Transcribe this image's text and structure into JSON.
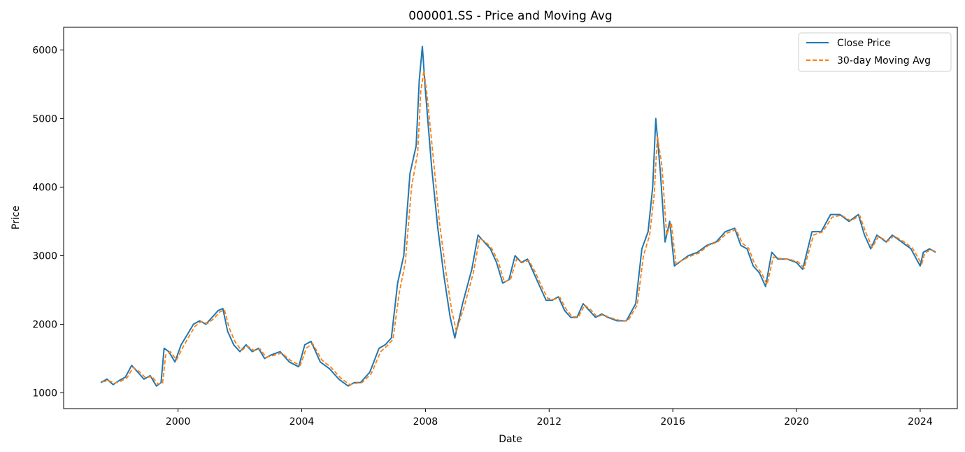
{
  "chart_data": {
    "type": "line",
    "title": "000001.SS - Price and Moving Avg",
    "xlabel": "Date",
    "ylabel": "Price",
    "xlim": [
      1996.3,
      2025.2
    ],
    "ylim": [
      770,
      6330
    ],
    "x_ticks": [
      2000,
      2004,
      2008,
      2012,
      2016,
      2020,
      2024
    ],
    "x_tick_labels": [
      "2000",
      "2004",
      "2008",
      "2012",
      "2016",
      "2020",
      "2024"
    ],
    "y_ticks": [
      1000,
      2000,
      3000,
      4000,
      5000,
      6000
    ],
    "y_tick_labels": [
      "1000",
      "2000",
      "3000",
      "4000",
      "5000",
      "6000"
    ],
    "grid": false,
    "legend_position": "upper-right",
    "series": [
      {
        "name": "Close Price",
        "color": "#1f77b4",
        "style": "solid",
        "x": [
          1997.5,
          1997.7,
          1997.9,
          1998.1,
          1998.3,
          1998.5,
          1998.7,
          1998.9,
          1999.1,
          1999.3,
          1999.45,
          1999.55,
          1999.7,
          1999.9,
          2000.1,
          2000.3,
          2000.5,
          2000.7,
          2000.9,
          2001.1,
          2001.3,
          2001.45,
          2001.6,
          2001.8,
          2002.0,
          2002.2,
          2002.4,
          2002.6,
          2002.8,
          2003.0,
          2003.3,
          2003.6,
          2003.9,
          2004.1,
          2004.3,
          2004.6,
          2004.9,
          2005.2,
          2005.5,
          2005.7,
          2005.9,
          2006.2,
          2006.5,
          2006.7,
          2006.9,
          2007.1,
          2007.3,
          2007.5,
          2007.7,
          2007.8,
          2007.9,
          2008.0,
          2008.2,
          2008.4,
          2008.6,
          2008.8,
          2008.95,
          2009.2,
          2009.5,
          2009.7,
          2009.9,
          2010.1,
          2010.3,
          2010.5,
          2010.7,
          2010.9,
          2011.1,
          2011.3,
          2011.5,
          2011.7,
          2011.9,
          2012.1,
          2012.3,
          2012.5,
          2012.7,
          2012.9,
          2013.1,
          2013.3,
          2013.5,
          2013.7,
          2013.9,
          2014.2,
          2014.5,
          2014.8,
          2015.0,
          2015.2,
          2015.35,
          2015.45,
          2015.6,
          2015.75,
          2015.9,
          2016.05,
          2016.2,
          2016.5,
          2016.8,
          2017.1,
          2017.4,
          2017.7,
          2018.0,
          2018.2,
          2018.4,
          2018.6,
          2018.8,
          2019.0,
          2019.2,
          2019.4,
          2019.7,
          2020.0,
          2020.2,
          2020.5,
          2020.8,
          2021.1,
          2021.4,
          2021.7,
          2022.0,
          2022.2,
          2022.4,
          2022.6,
          2022.9,
          2023.1,
          2023.4,
          2023.7,
          2024.0,
          2024.1,
          2024.3,
          2024.5
        ],
        "y": [
          1150,
          1200,
          1120,
          1180,
          1230,
          1400,
          1300,
          1200,
          1250,
          1100,
          1150,
          1650,
          1600,
          1450,
          1700,
          1850,
          2000,
          2050,
          2000,
          2100,
          2200,
          2230,
          1900,
          1700,
          1600,
          1700,
          1600,
          1650,
          1500,
          1550,
          1600,
          1450,
          1380,
          1700,
          1750,
          1450,
          1350,
          1200,
          1100,
          1150,
          1150,
          1300,
          1650,
          1700,
          1800,
          2600,
          3000,
          4200,
          4600,
          5550,
          6050,
          5400,
          4300,
          3400,
          2700,
          2100,
          1800,
          2300,
          2800,
          3300,
          3200,
          3100,
          2900,
          2600,
          2650,
          3000,
          2900,
          2950,
          2750,
          2550,
          2350,
          2350,
          2400,
          2200,
          2100,
          2100,
          2300,
          2200,
          2100,
          2150,
          2100,
          2050,
          2050,
          2300,
          3100,
          3350,
          4000,
          5000,
          4200,
          3200,
          3500,
          2850,
          2900,
          3000,
          3050,
          3150,
          3200,
          3350,
          3400,
          3150,
          3100,
          2850,
          2750,
          2550,
          3050,
          2950,
          2950,
          2900,
          2800,
          3350,
          3350,
          3600,
          3600,
          3500,
          3600,
          3300,
          3100,
          3300,
          3200,
          3300,
          3200,
          3100,
          2850,
          3050,
          3100,
          3050
        ]
      },
      {
        "name": "30-day Moving Avg",
        "color": "#ff7f0e",
        "style": "dashed",
        "x": [
          1997.55,
          1997.75,
          1997.95,
          1998.15,
          1998.35,
          1998.55,
          1998.75,
          1998.95,
          1999.15,
          1999.35,
          1999.5,
          1999.6,
          1999.75,
          1999.95,
          2000.15,
          2000.35,
          2000.55,
          2000.75,
          2000.95,
          2001.15,
          2001.35,
          2001.5,
          2001.65,
          2001.85,
          2002.05,
          2002.25,
          2002.45,
          2002.65,
          2002.85,
          2003.05,
          2003.35,
          2003.65,
          2003.95,
          2004.15,
          2004.35,
          2004.65,
          2004.95,
          2005.25,
          2005.55,
          2005.75,
          2005.95,
          2006.25,
          2006.55,
          2006.75,
          2006.95,
          2007.15,
          2007.35,
          2007.55,
          2007.75,
          2007.85,
          2007.95,
          2008.05,
          2008.25,
          2008.45,
          2008.65,
          2008.85,
          2009.0,
          2009.25,
          2009.55,
          2009.75,
          2009.95,
          2010.15,
          2010.35,
          2010.55,
          2010.75,
          2010.95,
          2011.15,
          2011.35,
          2011.55,
          2011.75,
          2011.95,
          2012.15,
          2012.35,
          2012.55,
          2012.75,
          2012.95,
          2013.15,
          2013.35,
          2013.55,
          2013.75,
          2013.95,
          2014.25,
          2014.55,
          2014.85,
          2015.05,
          2015.25,
          2015.4,
          2015.5,
          2015.65,
          2015.8,
          2015.95,
          2016.1,
          2016.25,
          2016.55,
          2016.85,
          2017.15,
          2017.45,
          2017.75,
          2018.05,
          2018.25,
          2018.45,
          2018.65,
          2018.85,
          2019.05,
          2019.25,
          2019.45,
          2019.75,
          2020.05,
          2020.25,
          2020.55,
          2020.85,
          2021.15,
          2021.45,
          2021.75,
          2022.05,
          2022.25,
          2022.45,
          2022.65,
          2022.95,
          2023.15,
          2023.45,
          2023.75,
          2024.05,
          2024.15,
          2024.35,
          2024.5
        ],
        "y": [
          1160,
          1180,
          1140,
          1170,
          1220,
          1370,
          1310,
          1220,
          1240,
          1130,
          1140,
          1550,
          1600,
          1480,
          1660,
          1820,
          1970,
          2040,
          2010,
          2080,
          2180,
          2210,
          1950,
          1740,
          1620,
          1680,
          1620,
          1640,
          1520,
          1540,
          1580,
          1470,
          1400,
          1650,
          1720,
          1480,
          1370,
          1220,
          1120,
          1140,
          1150,
          1280,
          1600,
          1680,
          1780,
          2450,
          2900,
          4000,
          4500,
          5400,
          5700,
          5350,
          4450,
          3500,
          2800,
          2200,
          1900,
          2250,
          2750,
          3250,
          3200,
          3100,
          2920,
          2620,
          2650,
          2950,
          2900,
          2930,
          2760,
          2560,
          2380,
          2360,
          2390,
          2220,
          2110,
          2110,
          2280,
          2210,
          2110,
          2140,
          2100,
          2060,
          2050,
          2280,
          3000,
          3300,
          3900,
          4750,
          4300,
          3300,
          3480,
          2880,
          2920,
          2990,
          3040,
          3150,
          3200,
          3330,
          3380,
          3180,
          3110,
          2880,
          2760,
          2580,
          2980,
          2960,
          2950,
          2910,
          2820,
          3300,
          3350,
          3560,
          3590,
          3510,
          3580,
          3330,
          3120,
          3280,
          3210,
          3290,
          3210,
          3110,
          2880,
          3040,
          3090,
          3060
        ]
      }
    ]
  }
}
